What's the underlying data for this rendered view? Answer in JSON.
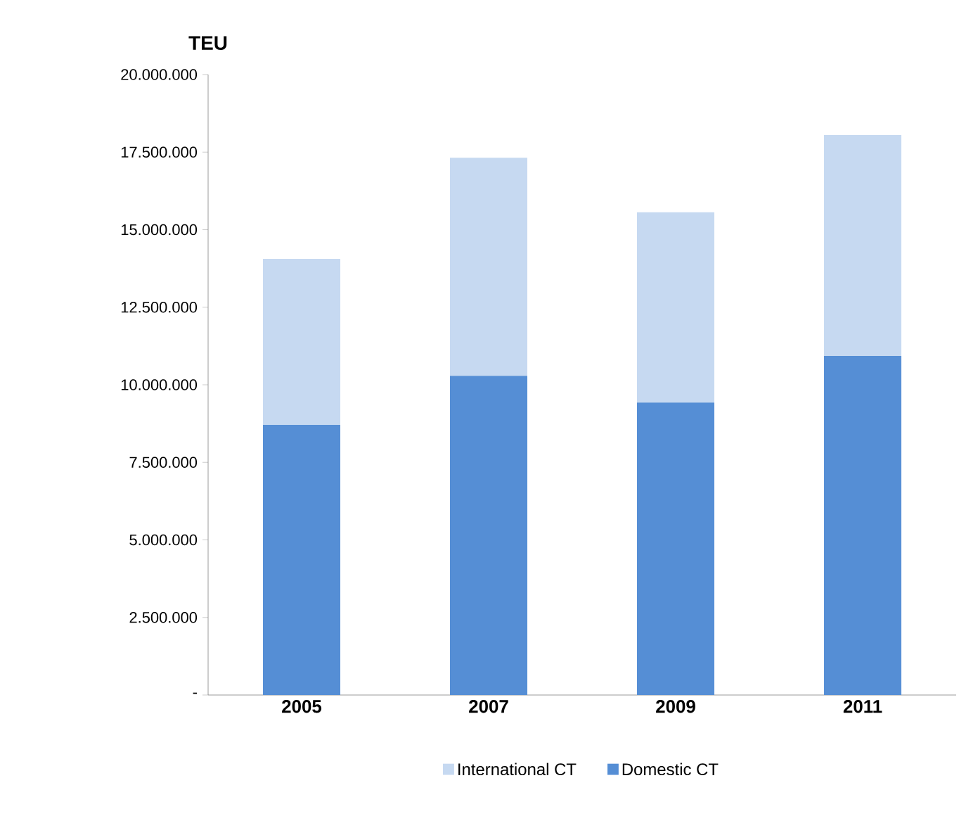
{
  "chart_data": {
    "type": "bar",
    "stacked": true,
    "ylabel": "TEU",
    "categories": [
      "2005",
      "2007",
      "2009",
      "2011"
    ],
    "series": [
      {
        "name": "Domestic CT",
        "color": "#558ed5",
        "values": [
          8710000,
          10290000,
          9430000,
          10930000
        ]
      },
      {
        "name": "International CT",
        "color": "#c6d9f1",
        "values": [
          5350000,
          7030000,
          6130000,
          7120000
        ]
      }
    ],
    "ylim": [
      0,
      20000000
    ],
    "yticks": [
      {
        "value": 0,
        "label": "-"
      },
      {
        "value": 2500000,
        "label": "2.500.000"
      },
      {
        "value": 5000000,
        "label": "5.000.000"
      },
      {
        "value": 7500000,
        "label": "7.500.000"
      },
      {
        "value": 10000000,
        "label": "10.000.000"
      },
      {
        "value": 12500000,
        "label": "12.500.000"
      },
      {
        "value": 15000000,
        "label": "15.000.000"
      },
      {
        "value": 17500000,
        "label": "17.500.000"
      },
      {
        "value": 20000000,
        "label": "20.000.000"
      }
    ],
    "legend": "bottom"
  }
}
